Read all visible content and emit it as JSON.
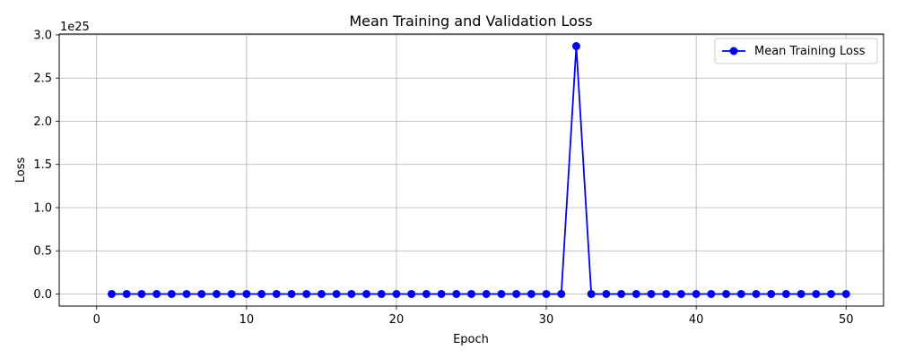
{
  "chart_data": {
    "type": "line",
    "title": "Mean Training and Validation Loss",
    "xlabel": "Epoch",
    "ylabel": "Loss",
    "y_offset_label": "1e25",
    "xlim": [
      -2.5,
      52.5
    ],
    "ylim": [
      -0.14,
      3.01
    ],
    "y_scale_exponent": 25,
    "x_ticks": [
      0,
      10,
      20,
      30,
      40,
      50
    ],
    "x_tick_labels": [
      "0",
      "10",
      "20",
      "30",
      "40",
      "50"
    ],
    "y_ticks": [
      0.0,
      0.5,
      1.0,
      1.5,
      2.0,
      2.5,
      3.0
    ],
    "y_tick_labels": [
      "0.0",
      "0.5",
      "1.0",
      "1.5",
      "2.0",
      "2.5",
      "3.0"
    ],
    "grid": true,
    "legend_position": "top-right",
    "series": [
      {
        "name": "Mean Training Loss",
        "color": "#0000ff",
        "marker": "circle",
        "x": [
          1,
          2,
          3,
          4,
          5,
          6,
          7,
          8,
          9,
          10,
          11,
          12,
          13,
          14,
          15,
          16,
          17,
          18,
          19,
          20,
          21,
          22,
          23,
          24,
          25,
          26,
          27,
          28,
          29,
          30,
          31,
          32,
          33,
          34,
          35,
          36,
          37,
          38,
          39,
          40,
          41,
          42,
          43,
          44,
          45,
          46,
          47,
          48,
          49,
          50
        ],
        "y": [
          0,
          0,
          0,
          0,
          0,
          0,
          0,
          0,
          0,
          0,
          0,
          0,
          0,
          0,
          0,
          0,
          0,
          0,
          0,
          0,
          0,
          0,
          0,
          0,
          0,
          0,
          0,
          0,
          0,
          0,
          0,
          2.87,
          0,
          0,
          0,
          0,
          0,
          0,
          0,
          0,
          0,
          0,
          0,
          0,
          0,
          0,
          0,
          0,
          0,
          0
        ]
      }
    ]
  }
}
